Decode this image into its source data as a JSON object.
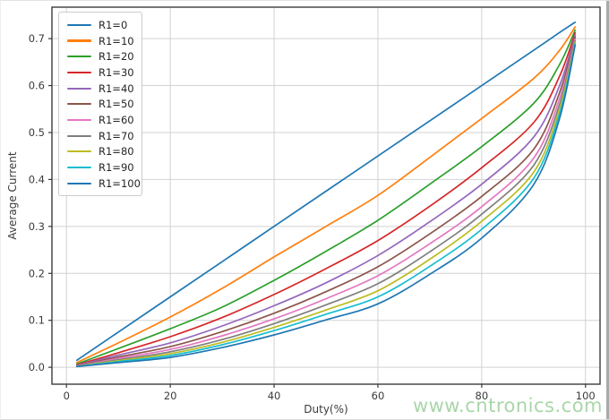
{
  "page": {
    "watermark": "www.cntronics.com",
    "watermark_color": "#a9d6a9",
    "background": "#ffffff"
  },
  "chart_data": {
    "type": "line",
    "title": "",
    "xlabel": "Duty(%)",
    "ylabel": "Average Current",
    "grid": true,
    "legend_position": "upper left",
    "xlim": [
      -2.8,
      102.8
    ],
    "ylim": [
      -0.036,
      0.767
    ],
    "xticks": [
      0,
      20,
      40,
      60,
      80,
      100
    ],
    "yticks": [
      0.0,
      0.1,
      0.2,
      0.3,
      0.4,
      0.5,
      0.6,
      0.7
    ],
    "x": [
      2,
      10,
      20,
      30,
      40,
      50,
      60,
      70,
      80,
      90,
      95,
      98
    ],
    "series": [
      {
        "name": "R1=0",
        "color": "#1f77b4",
        "values": [
          0.015,
          0.075,
          0.15,
          0.225,
          0.3,
          0.375,
          0.45,
          0.525,
          0.6,
          0.675,
          0.713,
          0.735
        ]
      },
      {
        "name": "R1=10",
        "color": "#ff7f0e",
        "values": [
          0.01,
          0.052,
          0.107,
          0.168,
          0.235,
          0.3,
          0.366,
          0.447,
          0.53,
          0.615,
          0.675,
          0.725
        ]
      },
      {
        "name": "R1=20",
        "color": "#2ca02c",
        "values": [
          0.007,
          0.04,
          0.082,
          0.128,
          0.185,
          0.247,
          0.313,
          0.39,
          0.47,
          0.562,
          0.645,
          0.718
        ]
      },
      {
        "name": "R1=30",
        "color": "#d62728",
        "values": [
          0.005,
          0.031,
          0.065,
          0.106,
          0.155,
          0.21,
          0.27,
          0.343,
          0.425,
          0.521,
          0.62,
          0.712
        ]
      },
      {
        "name": "R1=40",
        "color": "#9467bd",
        "values": [
          0.004,
          0.026,
          0.052,
          0.088,
          0.131,
          0.18,
          0.238,
          0.31,
          0.39,
          0.49,
          0.6,
          0.707
        ]
      },
      {
        "name": "R1=50",
        "color": "#8c564b",
        "values": [
          0.0035,
          0.022,
          0.044,
          0.076,
          0.115,
          0.161,
          0.214,
          0.284,
          0.364,
          0.464,
          0.585,
          0.703
        ]
      },
      {
        "name": "R1=60",
        "color": "#e377c2",
        "values": [
          0.003,
          0.019,
          0.038,
          0.067,
          0.103,
          0.146,
          0.195,
          0.263,
          0.342,
          0.445,
          0.572,
          0.699
        ]
      },
      {
        "name": "R1=70",
        "color": "#7f7f7f",
        "values": [
          0.0025,
          0.016,
          0.033,
          0.059,
          0.093,
          0.133,
          0.178,
          0.246,
          0.326,
          0.43,
          0.56,
          0.695
        ]
      },
      {
        "name": "R1=80",
        "color": "#bcbd22",
        "values": [
          0.002,
          0.014,
          0.029,
          0.053,
          0.085,
          0.122,
          0.163,
          0.23,
          0.311,
          0.415,
          0.55,
          0.692
        ]
      },
      {
        "name": "R1=90",
        "color": "#17becf",
        "values": [
          0.0018,
          0.012,
          0.025,
          0.048,
          0.078,
          0.113,
          0.15,
          0.215,
          0.294,
          0.402,
          0.54,
          0.689
        ]
      },
      {
        "name": "R1=100",
        "color": "#1f77b4",
        "values": [
          0.0015,
          0.01,
          0.021,
          0.042,
          0.069,
          0.101,
          0.135,
          0.198,
          0.275,
          0.389,
          0.53,
          0.686
        ]
      }
    ]
  }
}
